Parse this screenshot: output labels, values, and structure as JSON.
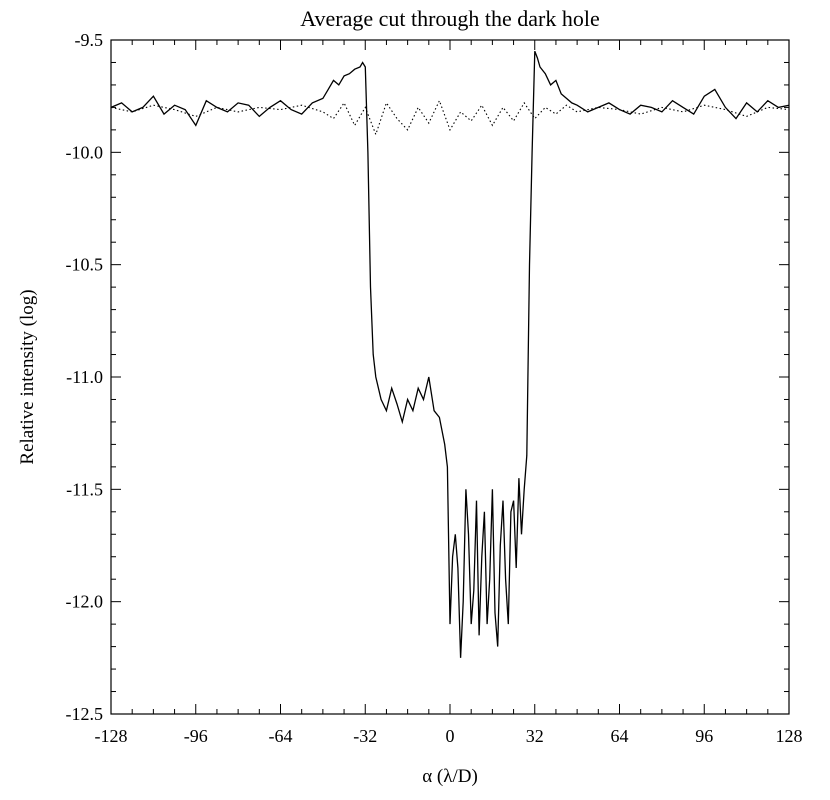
{
  "chart_data": {
    "type": "line",
    "title": "Average cut through the dark hole",
    "xlabel": "α (λ/D)",
    "ylabel": "Relative intensity (log)",
    "xlim": [
      -128,
      128
    ],
    "ylim": [
      -12.5,
      -9.5
    ],
    "x_ticks": [
      -128,
      -96,
      -64,
      -32,
      0,
      32,
      64,
      96,
      128
    ],
    "x_tick_labels": [
      "-128",
      "-96",
      "-64",
      "-32",
      "0",
      "32",
      "64",
      "96",
      "128"
    ],
    "y_ticks": [
      -9.5,
      -10.0,
      -10.5,
      -11.0,
      -11.5,
      -12.0,
      -12.5
    ],
    "y_tick_labels": [
      "-9.5",
      "-10.0",
      "-10.5",
      "-11.0",
      "-11.5",
      "-12.0",
      "-12.5"
    ],
    "grid": false,
    "series": [
      {
        "style": "solid",
        "color": "#000000",
        "x": [
          -128,
          -124,
          -120,
          -116,
          -112,
          -108,
          -104,
          -100,
          -96,
          -92,
          -88,
          -84,
          -80,
          -76,
          -72,
          -68,
          -64,
          -60,
          -56,
          -52,
          -48,
          -46,
          -44,
          -42,
          -40,
          -38,
          -36,
          -34,
          -33,
          -32,
          -31,
          -30,
          -29,
          -28,
          -26,
          -24,
          -22,
          -20,
          -18,
          -16,
          -14,
          -12,
          -10,
          -8,
          -6,
          -4,
          -2,
          -1,
          0,
          1,
          2,
          3,
          4,
          5,
          6,
          7,
          8,
          9,
          10,
          11,
          12,
          13,
          14,
          15,
          16,
          17,
          18,
          19,
          20,
          21,
          22,
          23,
          24,
          25,
          26,
          27,
          28,
          29,
          30,
          31,
          32,
          33,
          34,
          36,
          38,
          40,
          42,
          44,
          46,
          48,
          52,
          56,
          60,
          64,
          68,
          72,
          76,
          80,
          84,
          88,
          92,
          96,
          100,
          104,
          108,
          112,
          116,
          120,
          124,
          128
        ],
        "y": [
          -9.8,
          -9.78,
          -9.82,
          -9.8,
          -9.75,
          -9.83,
          -9.79,
          -9.81,
          -9.88,
          -9.77,
          -9.8,
          -9.82,
          -9.78,
          -9.79,
          -9.84,
          -9.8,
          -9.77,
          -9.81,
          -9.83,
          -9.78,
          -9.76,
          -9.72,
          -9.68,
          -9.7,
          -9.66,
          -9.65,
          -9.63,
          -9.62,
          -9.6,
          -9.62,
          -10.0,
          -10.6,
          -10.9,
          -11.0,
          -11.1,
          -11.15,
          -11.05,
          -11.12,
          -11.2,
          -11.1,
          -11.15,
          -11.05,
          -11.1,
          -11.0,
          -11.15,
          -11.18,
          -11.3,
          -11.4,
          -12.1,
          -11.8,
          -11.7,
          -11.85,
          -12.25,
          -12.0,
          -11.5,
          -11.7,
          -12.1,
          -11.95,
          -11.55,
          -12.15,
          -11.8,
          -11.6,
          -12.1,
          -11.9,
          -11.5,
          -12.05,
          -12.2,
          -11.75,
          -11.55,
          -11.9,
          -12.1,
          -11.6,
          -11.55,
          -11.85,
          -11.45,
          -11.7,
          -11.5,
          -11.35,
          -10.5,
          -10.0,
          -9.55,
          -9.58,
          -9.62,
          -9.65,
          -9.7,
          -9.68,
          -9.74,
          -9.76,
          -9.78,
          -9.79,
          -9.82,
          -9.8,
          -9.78,
          -9.81,
          -9.83,
          -9.79,
          -9.8,
          -9.82,
          -9.77,
          -9.8,
          -9.83,
          -9.75,
          -9.72,
          -9.8,
          -9.85,
          -9.78,
          -9.82,
          -9.77,
          -9.8,
          -9.79
        ]
      },
      {
        "style": "dotted",
        "color": "#000000",
        "x": [
          -128,
          -120,
          -112,
          -104,
          -96,
          -88,
          -80,
          -72,
          -64,
          -56,
          -48,
          -44,
          -40,
          -36,
          -32,
          -28,
          -24,
          -20,
          -16,
          -12,
          -8,
          -4,
          0,
          4,
          8,
          12,
          16,
          20,
          24,
          28,
          32,
          36,
          40,
          44,
          48,
          56,
          64,
          72,
          80,
          88,
          96,
          104,
          112,
          120,
          128
        ],
        "y": [
          -9.8,
          -9.82,
          -9.79,
          -9.81,
          -9.84,
          -9.8,
          -9.82,
          -9.8,
          -9.81,
          -9.79,
          -9.82,
          -9.85,
          -9.78,
          -9.88,
          -9.8,
          -9.92,
          -9.78,
          -9.85,
          -9.9,
          -9.8,
          -9.87,
          -9.77,
          -9.9,
          -9.82,
          -9.86,
          -9.79,
          -9.88,
          -9.8,
          -9.86,
          -9.78,
          -9.85,
          -9.8,
          -9.83,
          -9.79,
          -9.82,
          -9.8,
          -9.81,
          -9.83,
          -9.8,
          -9.82,
          -9.79,
          -9.81,
          -9.84,
          -9.8,
          -9.81
        ]
      }
    ]
  }
}
